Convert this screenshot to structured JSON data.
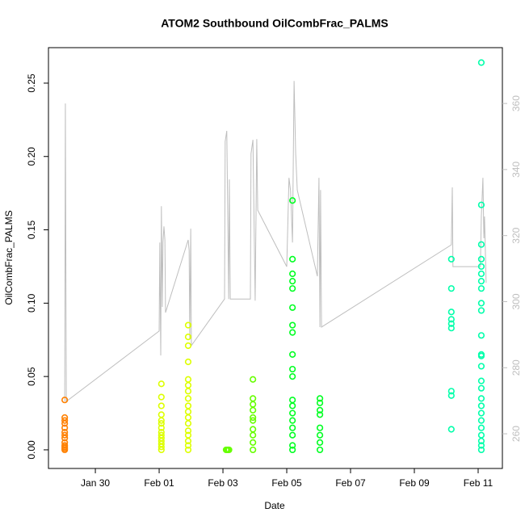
{
  "chart_data": {
    "type": "scatter",
    "title": "ATOM2 Southbound OilCombFrac_PALMS",
    "xlabel": "Date",
    "ylabel": "OilCombFrac_PALMS",
    "xlim": [
      28.53,
      42.76
    ],
    "xticks": [
      {
        "value": 30,
        "label": "Jan 30"
      },
      {
        "value": 32,
        "label": "Feb 01"
      },
      {
        "value": 34,
        "label": "Feb 03"
      },
      {
        "value": 36,
        "label": "Feb 05"
      },
      {
        "value": 38,
        "label": "Feb 07"
      },
      {
        "value": 40,
        "label": "Feb 09"
      },
      {
        "value": 42,
        "label": "Feb 11"
      }
    ],
    "ylim": [
      -0.0127,
      0.2742
    ],
    "yticks": [
      {
        "value": 0,
        "label": "0.00"
      },
      0.05,
      {
        "value": 0.1,
        "label": "0.10"
      },
      0.15,
      {
        "value": 0.2,
        "label": "0.20"
      },
      0.25
    ],
    "y2lim": [
      249.5,
      376.9
    ],
    "y2ticks": [
      260,
      280,
      300,
      320,
      340,
      360
    ],
    "series": [
      {
        "type": "line",
        "axis": "y2",
        "color": "#bebebe",
        "x": [
          29.04,
          29.06,
          29.09,
          32.0,
          32.02,
          32.05,
          32.07,
          32.1,
          32.12,
          32.15,
          32.18,
          32.2,
          32.91,
          32.94,
          32.96,
          32.99,
          33.01,
          34.05,
          34.07,
          34.12,
          34.18,
          34.2,
          34.23,
          34.86,
          34.88,
          34.94,
          35.01,
          35.06,
          35.09,
          36.0,
          36.07,
          36.12,
          36.18,
          36.23,
          36.28,
          36.33,
          36.96,
          37.01,
          37.04,
          37.06,
          37.09,
          41.16,
          41.19,
          41.21,
          42.07,
          42.1,
          42.12,
          42.15,
          42.18,
          42.2,
          42.25
        ],
        "values": [
          269.8,
          360.0,
          269.8,
          291.1,
          317.9,
          283.7,
          328.9,
          298.4,
          317.9,
          322.8,
          318.7,
          296.7,
          318.7,
          315.5,
          288.6,
          322.1,
          286.7,
          300.8,
          348.5,
          351.7,
          300.8,
          337.0,
          300.8,
          300.8,
          344.8,
          349.0,
          300.3,
          349.2,
          327.7,
          310.6,
          337.5,
          333.6,
          317.9,
          366.8,
          344.8,
          333.8,
          307.7,
          337.5,
          292.3,
          333.8,
          292.3,
          317.2,
          334.6,
          310.6,
          310.6,
          325.8,
          330.2,
          337.5,
          319.2,
          325.8,
          305.7
        ]
      },
      {
        "type": "scatter",
        "color": "#ff8000",
        "x": [
          29.04,
          29.04,
          29.04,
          29.04,
          29.04,
          29.04,
          29.04,
          29.04,
          29.04,
          29.04,
          29.04,
          29.04,
          29.04
        ],
        "values": [
          0,
          0.002,
          0.005,
          0.008,
          0.01,
          0.012,
          0.015,
          0.018,
          0.02,
          0.022,
          0.034,
          0.003,
          0.001
        ]
      },
      {
        "type": "scatter",
        "color": "#ddff00",
        "x": [
          32.07,
          32.07,
          32.07,
          32.07,
          32.07,
          32.07,
          32.07,
          32.07,
          32.07,
          32.07,
          32.07,
          32.07,
          32.07,
          32.07,
          32.91,
          32.91,
          32.91,
          32.91,
          32.91,
          32.91,
          32.91,
          32.91,
          32.91,
          32.91,
          32.91,
          32.91,
          32.91,
          32.91,
          32.91,
          32.91,
          32.91
        ],
        "values": [
          0,
          0.002,
          0.004,
          0.006,
          0.008,
          0.01,
          0.012,
          0.015,
          0.018,
          0.02,
          0.024,
          0.03,
          0.036,
          0.045,
          0,
          0.003,
          0.006,
          0.01,
          0.013,
          0.018,
          0.022,
          0.026,
          0.03,
          0.035,
          0.04,
          0.044,
          0.048,
          0.06,
          0.071,
          0.077,
          0.085
        ]
      },
      {
        "type": "scatter",
        "color": "#66ff00",
        "x": [
          34.1,
          34.13,
          34.16,
          34.19,
          34.94,
          34.94,
          34.94,
          34.94,
          34.94,
          34.94,
          34.94,
          34.94,
          34.94,
          34.94
        ],
        "values": [
          0,
          0,
          0,
          0,
          0,
          0.005,
          0.01,
          0.014,
          0.02,
          0.022,
          0.027,
          0.031,
          0.035,
          0.048
        ]
      },
      {
        "type": "scatter",
        "color": "#00ff22",
        "x": [
          36.18,
          36.18,
          36.18,
          36.18,
          36.18,
          36.18,
          36.18,
          36.18,
          36.18,
          36.18,
          36.18,
          36.18,
          36.18,
          36.18,
          36.18,
          36.18,
          36.18,
          36.18,
          36.18,
          37.04,
          37.04,
          37.04,
          37.04,
          37.04,
          37.04,
          37.04,
          37.04
        ],
        "values": [
          0,
          0.003,
          0.01,
          0.015,
          0.02,
          0.025,
          0.03,
          0.034,
          0.05,
          0.055,
          0.065,
          0.08,
          0.085,
          0.097,
          0.11,
          0.115,
          0.12,
          0.13,
          0.17,
          0,
          0.005,
          0.01,
          0.015,
          0.024,
          0.027,
          0.032,
          0.035
        ]
      },
      {
        "type": "scatter",
        "color": "#00ffaa",
        "x": [
          41.16,
          41.16,
          41.16,
          41.16,
          41.16,
          41.16,
          41.16,
          41.16,
          41.16,
          42.1,
          42.1,
          42.1,
          42.1,
          42.1,
          42.1,
          42.1,
          42.1,
          42.1,
          42.1,
          42.1,
          42.1,
          42.1,
          42.1,
          42.1,
          42.1,
          42.1,
          42.1,
          42.1,
          42.1,
          42.1,
          42.1,
          42.1,
          42.1,
          42.1
        ],
        "values": [
          0.014,
          0.037,
          0.04,
          0.083,
          0.086,
          0.089,
          0.094,
          0.11,
          0.13,
          0,
          0.003,
          0.006,
          0.01,
          0.015,
          0.02,
          0.025,
          0.03,
          0.035,
          0.042,
          0.047,
          0.057,
          0.064,
          0.065,
          0.078,
          0.095,
          0.1,
          0.11,
          0.115,
          0.12,
          0.125,
          0.13,
          0.14,
          0.167,
          0.264
        ]
      }
    ]
  }
}
